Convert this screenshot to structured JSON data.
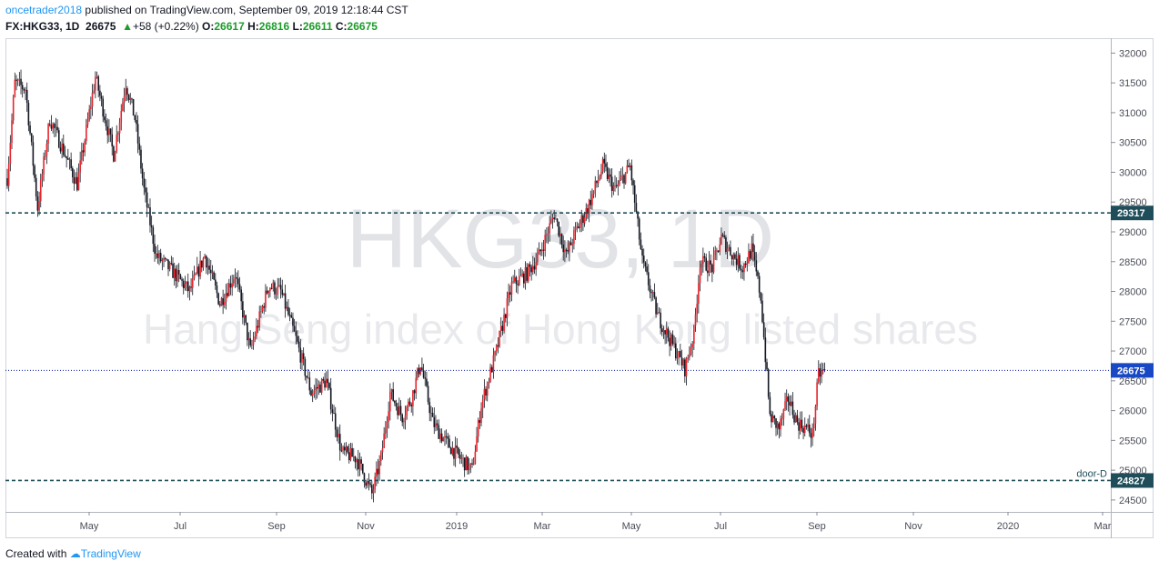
{
  "header": {
    "author": "oncetrader2018",
    "published": "published on TradingView.com, September 09, 2019 12:18:44 CST",
    "symbol": "FX:HKG33, 1D",
    "last": "26675",
    "change_arrow": "▲",
    "change": "+58 (+0.22%)",
    "o_label": "O:",
    "o_value": "26617",
    "h_label": "H:",
    "h_value": "26816",
    "l_label": "L:",
    "l_value": "26611",
    "c_label": "C:",
    "c_value": "26675"
  },
  "watermark": {
    "title": "HKG33, 1D",
    "subtitle": "Hang Seng index of Hong Kong listed shares"
  },
  "footer": {
    "created_with": "Created with",
    "brand": "TradingView"
  },
  "colors": {
    "up_candle": "#e8252d",
    "down_candle": "#131722",
    "level_line": "#1f4e5a",
    "price_line": "#0c1fa8",
    "tag_bg": "#1f4e5a",
    "price_tag_bg": "#1848c4"
  },
  "chart_data": {
    "type": "candlestick",
    "y_range": [
      24300,
      32250
    ],
    "y_ticks": [
      24500,
      25000,
      25500,
      26000,
      26500,
      27000,
      27500,
      28000,
      28500,
      29000,
      29500,
      30000,
      30500,
      31000,
      31500,
      32000
    ],
    "x_labels": [
      "May",
      "Jul",
      "Sep",
      "Nov",
      "2019",
      "Mar",
      "May",
      "Jul",
      "Sep",
      "Nov",
      "2020",
      "Mar"
    ],
    "levels": [
      {
        "label": "29317",
        "value": 29317,
        "style": "dashed"
      },
      {
        "label": "26675",
        "value": 26675,
        "style": "dotted",
        "role": "last-price"
      },
      {
        "label": "24827",
        "value": 24827,
        "style": "dashed",
        "annotation": "door-D"
      }
    ],
    "close_path": [
      [
        0,
        29900
      ],
      [
        5,
        31500
      ],
      [
        12,
        31400
      ],
      [
        20,
        29400
      ],
      [
        28,
        30900
      ],
      [
        38,
        30300
      ],
      [
        46,
        29800
      ],
      [
        58,
        31600
      ],
      [
        70,
        30300
      ],
      [
        78,
        31500
      ],
      [
        84,
        30900
      ],
      [
        90,
        29700
      ],
      [
        98,
        28600
      ],
      [
        110,
        28300
      ],
      [
        120,
        28000
      ],
      [
        130,
        28600
      ],
      [
        140,
        27800
      ],
      [
        150,
        28300
      ],
      [
        160,
        27000
      ],
      [
        172,
        28100
      ],
      [
        180,
        28000
      ],
      [
        190,
        27200
      ],
      [
        200,
        26300
      ],
      [
        210,
        26500
      ],
      [
        220,
        25300
      ],
      [
        230,
        25200
      ],
      [
        240,
        24600
      ],
      [
        246,
        25200
      ],
      [
        252,
        26300
      ],
      [
        260,
        25900
      ],
      [
        266,
        26200
      ],
      [
        272,
        26800
      ],
      [
        280,
        25800
      ],
      [
        288,
        25500
      ],
      [
        298,
        25200
      ],
      [
        306,
        25000
      ],
      [
        312,
        26100
      ],
      [
        322,
        27000
      ],
      [
        332,
        28100
      ],
      [
        342,
        28300
      ],
      [
        350,
        28600
      ],
      [
        360,
        29300
      ],
      [
        368,
        28600
      ],
      [
        374,
        29000
      ],
      [
        382,
        29400
      ],
      [
        392,
        30100
      ],
      [
        400,
        29700
      ],
      [
        410,
        30100
      ],
      [
        418,
        28500
      ],
      [
        428,
        27600
      ],
      [
        438,
        27100
      ],
      [
        446,
        26700
      ],
      [
        452,
        27300
      ],
      [
        456,
        28500
      ],
      [
        464,
        28400
      ],
      [
        470,
        28900
      ],
      [
        478,
        28600
      ],
      [
        484,
        28400
      ],
      [
        490,
        28700
      ],
      [
        496,
        27900
      ],
      [
        502,
        25900
      ],
      [
        508,
        25700
      ],
      [
        514,
        26200
      ],
      [
        520,
        25800
      ],
      [
        526,
        25700
      ],
      [
        530,
        25600
      ],
      [
        534,
        26600
      ],
      [
        538,
        26675
      ]
    ]
  }
}
